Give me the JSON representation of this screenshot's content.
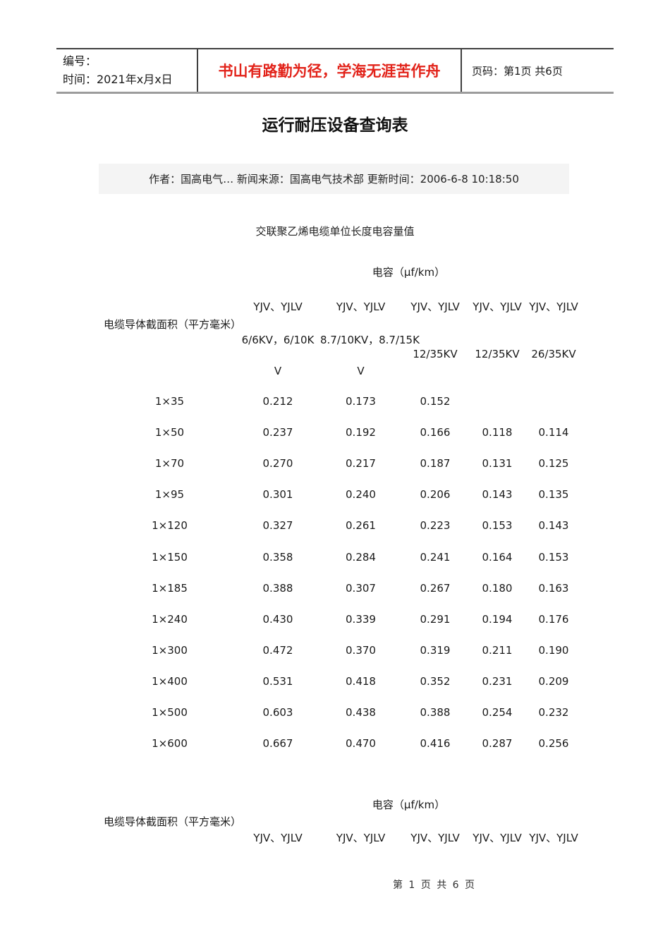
{
  "page": {
    "header_box": {
      "number_label": "编号：",
      "time_label": "时间：2021年x月x日",
      "motto": "书山有路勤为径，学海无涯苦作舟",
      "page_info": "页码：第1页 共6页"
    },
    "title": "运行耐压设备查询表",
    "meta_bar": "作者：国高电气… 新闻来源：国高电气技术部 更新时间：2006-6-8 10:18:50",
    "subtitle": "交联聚乙烯电缆单位长度电容量值",
    "footer": "第 1 页 共 6 页"
  },
  "table": {
    "capacity_header": "电容（µf/km）",
    "row_label_header": "电缆导体截面积（平方毫米）",
    "col_type_header": "YJV、YJLV",
    "voltage_columns_full": [
      "6/6KV，6/10KV",
      "8.7/10KV，8.7/15KV",
      "12/35KV",
      "12/35KV",
      "26/35KV"
    ],
    "voltage_line_a": [
      "6/6KV，6/10K",
      "8.7/10KV，8.7/15K"
    ],
    "voltage_line_b": [
      "12/35KV",
      "12/35KV",
      "26/35KV"
    ],
    "voltage_line_c": [
      "V",
      "V"
    ],
    "rows": [
      {
        "size": "1×35",
        "values": [
          "0.212",
          "0.173",
          "0.152",
          "",
          ""
        ]
      },
      {
        "size": "1×50",
        "values": [
          "0.237",
          "0.192",
          "0.166",
          "0.118",
          "0.114"
        ]
      },
      {
        "size": "1×70",
        "values": [
          "0.270",
          "0.217",
          "0.187",
          "0.131",
          "0.125"
        ]
      },
      {
        "size": "1×95",
        "values": [
          "0.301",
          "0.240",
          "0.206",
          "0.143",
          "0.135"
        ]
      },
      {
        "size": "1×120",
        "values": [
          "0.327",
          "0.261",
          "0.223",
          "0.153",
          "0.143"
        ]
      },
      {
        "size": "1×150",
        "values": [
          "0.358",
          "0.284",
          "0.241",
          "0.164",
          "0.153"
        ]
      },
      {
        "size": "1×185",
        "values": [
          "0.388",
          "0.307",
          "0.267",
          "0.180",
          "0.163"
        ]
      },
      {
        "size": "1×240",
        "values": [
          "0.430",
          "0.339",
          "0.291",
          "0.194",
          "0.176"
        ]
      },
      {
        "size": "1×300",
        "values": [
          "0.472",
          "0.370",
          "0.319",
          "0.211",
          "0.190"
        ]
      },
      {
        "size": "1×400",
        "values": [
          "0.531",
          "0.418",
          "0.352",
          "0.231",
          "0.209"
        ]
      },
      {
        "size": "1×500",
        "values": [
          "0.603",
          "0.438",
          "0.388",
          "0.254",
          "0.232"
        ]
      },
      {
        "size": "1×600",
        "values": [
          "0.667",
          "0.470",
          "0.416",
          "0.287",
          "0.256"
        ]
      }
    ]
  },
  "table2": {
    "capacity_header": "电容（µf/km）",
    "row_label_header": "电缆导体截面积（平方毫米）",
    "col_type_header": "YJV、YJLV"
  },
  "colors": {
    "motto_red": "#e2231a",
    "meta_bar_bg": "#f4f4f4",
    "border_dark": "#3f3f3f",
    "border_gray": "#9c9c9c"
  }
}
